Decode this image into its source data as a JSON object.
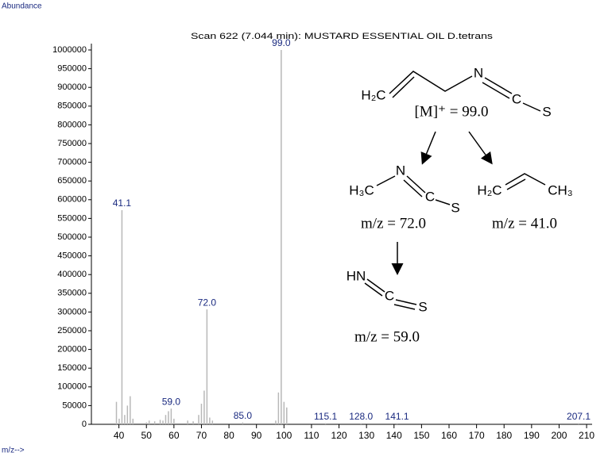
{
  "chart_data": {
    "type": "bar",
    "title": "Scan 622 (7.044 min): MUSTARD ESSENTIAL OIL D.tetrans",
    "ylabel": "Abundance",
    "xlabel": "m/z-->",
    "x": [
      39.1,
      40.1,
      41.1,
      42.1,
      43.1,
      44.1,
      45.1,
      50,
      51,
      53,
      55,
      56,
      57,
      58,
      59.0,
      60,
      65,
      67,
      69,
      70,
      71,
      72.0,
      73,
      74,
      85.0,
      97,
      98,
      99.0,
      100,
      101,
      115.1,
      128.0,
      141.1,
      207.1
    ],
    "values": [
      60000,
      15000,
      572000,
      25000,
      50000,
      75000,
      15000,
      5000,
      10000,
      8000,
      12000,
      10000,
      25000,
      35000,
      42000,
      15000,
      10000,
      8000,
      25000,
      55000,
      90000,
      307000,
      18000,
      10000,
      5000,
      10000,
      85000,
      1000000,
      60000,
      45000,
      3000,
      3000,
      3000,
      3000
    ],
    "x_labels": [
      null,
      null,
      "41.1",
      null,
      null,
      null,
      null,
      null,
      null,
      null,
      null,
      null,
      null,
      null,
      "59.0",
      null,
      null,
      null,
      null,
      null,
      null,
      "72.0",
      null,
      null,
      "85.0",
      null,
      null,
      "99.0",
      null,
      null,
      "115.1",
      "128.0",
      "141.1",
      "207.1"
    ],
    "color": "#b8b8b8",
    "label_color": "#1a2a80",
    "xlim": [
      30,
      212
    ],
    "xticks": [
      40,
      50,
      60,
      70,
      80,
      90,
      100,
      110,
      120,
      130,
      140,
      150,
      160,
      170,
      180,
      190,
      200,
      210
    ],
    "ylim": [
      0,
      1000000
    ],
    "yticks": [
      0,
      50000,
      100000,
      150000,
      200000,
      250000,
      300000,
      350000,
      400000,
      450000,
      500000,
      550000,
      600000,
      650000,
      700000,
      750000,
      800000,
      850000,
      900000,
      950000,
      1000000
    ],
    "annotations": [
      "H₂C",
      "N",
      "C",
      "S",
      "[M]⁺ = 99.0",
      "H₃C",
      "N",
      "C",
      "S",
      "m/z = 72.0",
      "H₂C",
      "CH₃",
      "m/z = 41.0",
      "HN",
      "C",
      "S",
      "m/z = 59.0"
    ]
  }
}
